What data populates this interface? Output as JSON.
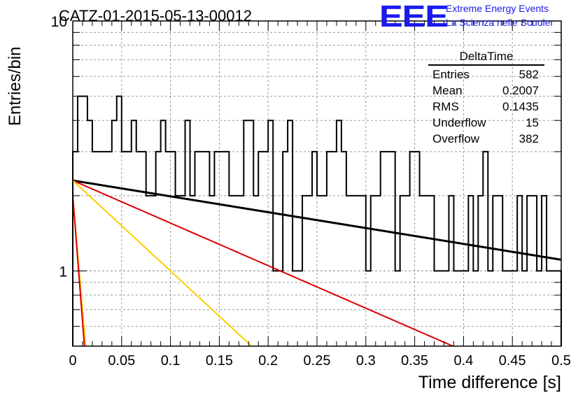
{
  "title": "CATZ-01-2015-05-13-00012",
  "logo": {
    "text": "EEE",
    "line1": "Extreme Energy Events",
    "line2": "La Scienza nelle Scuole",
    "color": "#1a1aee"
  },
  "stats": {
    "title": "DeltaTime",
    "rows": [
      {
        "label": "Entries",
        "value": "582"
      },
      {
        "label": "Mean",
        "value": "0.2007"
      },
      {
        "label": "RMS",
        "value": "0.1435"
      },
      {
        "label": "Underflow",
        "value": "15"
      },
      {
        "label": "Overflow",
        "value": "382"
      }
    ]
  },
  "chart_data": {
    "type": "histogram",
    "title": "CATZ-01-2015-05-13-00012",
    "xlabel": "Time difference [s]",
    "ylabel": "Entries/bin",
    "xlim": [
      0,
      0.5
    ],
    "ylim": [
      0.5,
      10
    ],
    "yscale": "log",
    "grid": true,
    "x_ticks": [
      "0",
      "0.05",
      "0.1",
      "0.15",
      "0.2",
      "0.25",
      "0.3",
      "0.35",
      "0.4",
      "0.45",
      "0.5"
    ],
    "y_ticks": [
      "1",
      "10"
    ],
    "bin_width": 0.005,
    "histogram_values": [
      3,
      5,
      5,
      4,
      3,
      3,
      3,
      3,
      4,
      5,
      3,
      3,
      4,
      3,
      3,
      2,
      2,
      3,
      4,
      3,
      3,
      2,
      2,
      4,
      2,
      3,
      3,
      3,
      2,
      3,
      3,
      3,
      2,
      2,
      2,
      4,
      4,
      2,
      3,
      3,
      4,
      1,
      1,
      3,
      4,
      1,
      1,
      2,
      2,
      3,
      2,
      2,
      3,
      3,
      4,
      3,
      2,
      2,
      2,
      2,
      1,
      2,
      2,
      3,
      3,
      3,
      1,
      2,
      2,
      3,
      3,
      2,
      2,
      2,
      1,
      1,
      1,
      2,
      1,
      1,
      1,
      2,
      1,
      2,
      3,
      1,
      2,
      2,
      1,
      1,
      1,
      2,
      1,
      2,
      2,
      1,
      2,
      1,
      1,
      1
    ],
    "curves": [
      {
        "color": "#000000",
        "model": "exponential",
        "A": 2.3,
        "tau": 0.685,
        "x_range": [
          0,
          0.5
        ]
      },
      {
        "color": "#dd0000",
        "model": "exponential",
        "A": 2.3,
        "tau": 0.255,
        "x_range": [
          0,
          0.5
        ]
      },
      {
        "color": "#ffcc00",
        "model": "exponential",
        "A": 2.3,
        "tau": 0.12,
        "x_range": [
          0,
          0.5
        ]
      },
      {
        "color": "#ffcc00",
        "model": "exponential",
        "A": 2.0,
        "tau": 0.0095,
        "x_range": [
          0,
          0.5
        ]
      },
      {
        "color": "#dd0000",
        "model": "exponential",
        "A": 2.0,
        "tau": 0.0086,
        "x_range": [
          0,
          0.5
        ]
      }
    ]
  }
}
